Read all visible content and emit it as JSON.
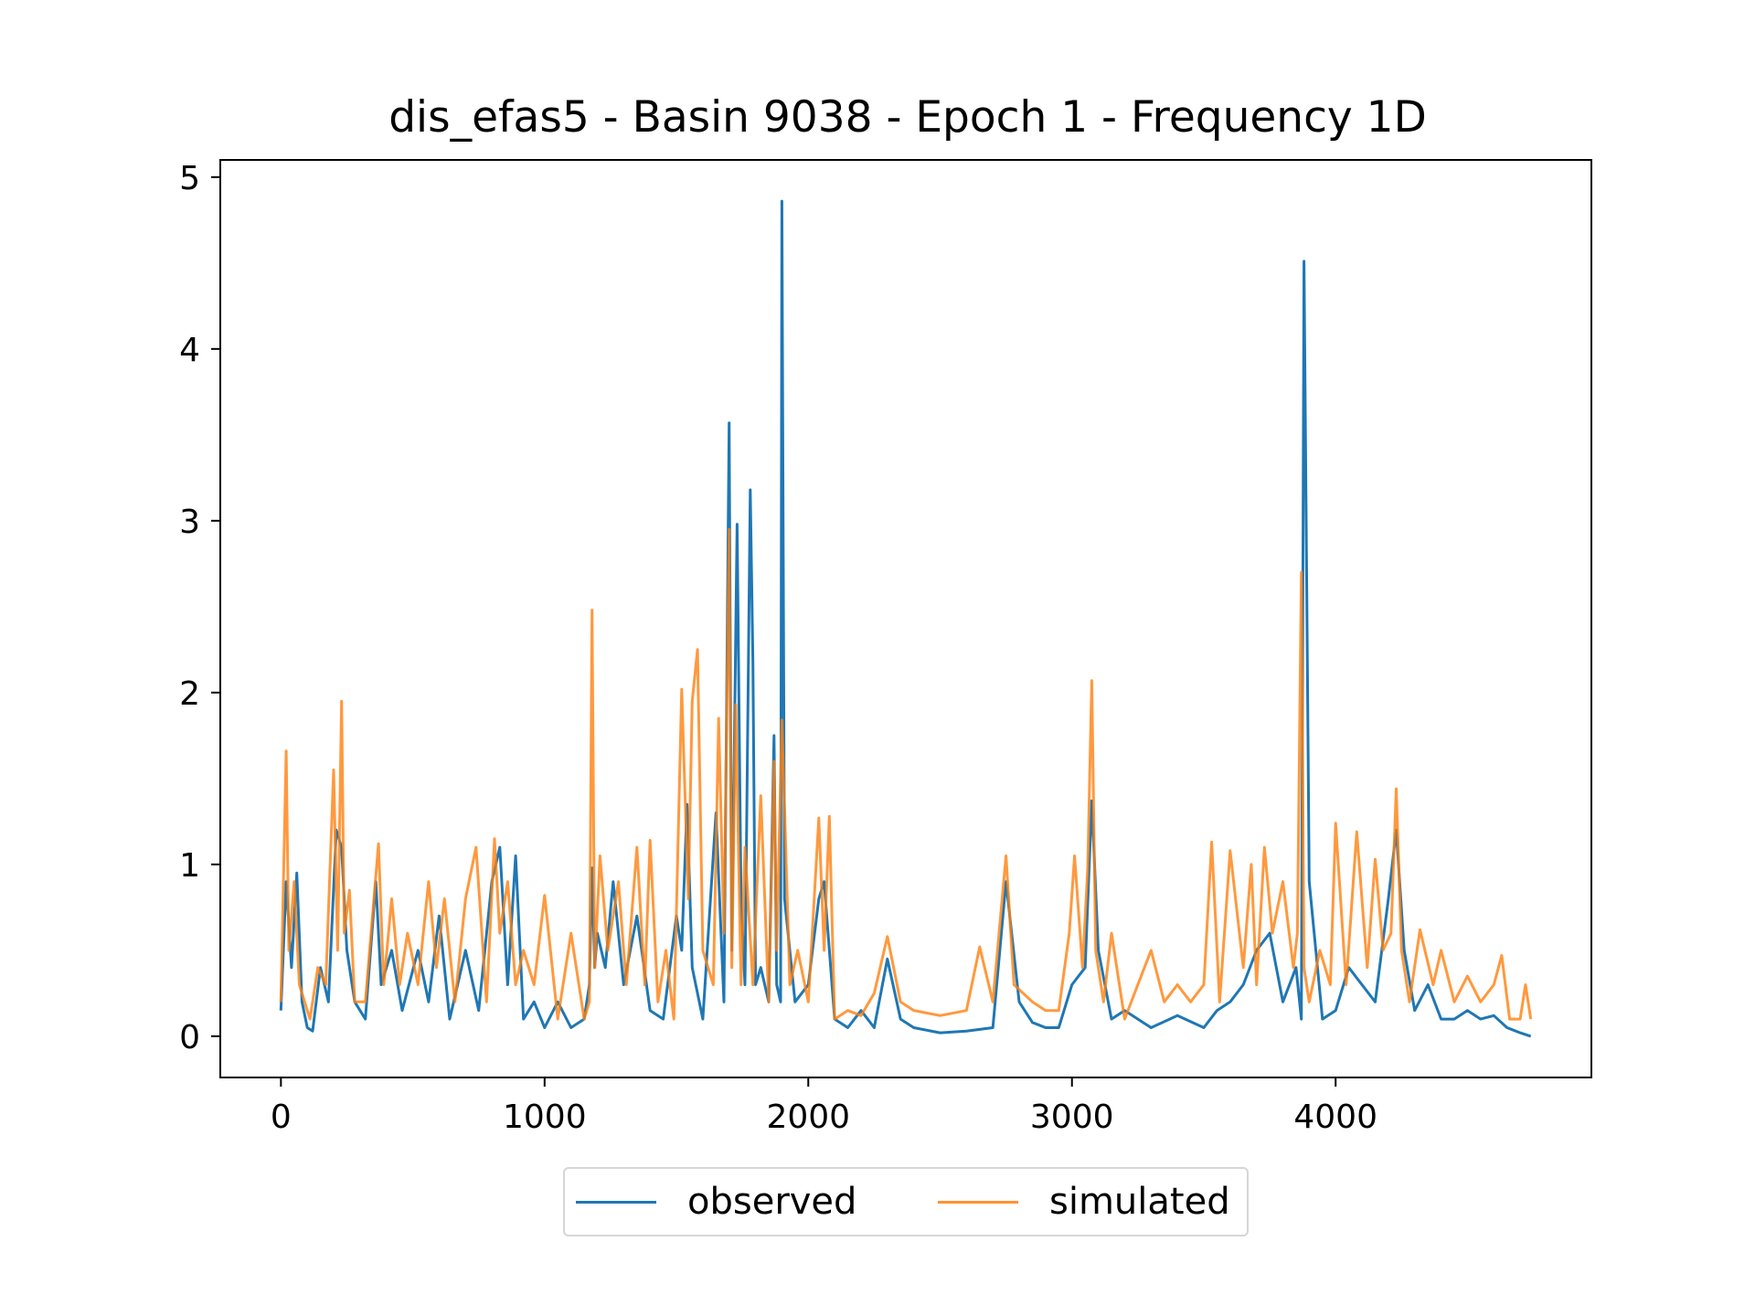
{
  "chart_data": {
    "type": "line",
    "title": "dis_efas5 - Basin 9038 - Epoch 1 - Frequency 1D",
    "xlabel": "",
    "ylabel": "",
    "xlim": [
      -230,
      4970
    ],
    "ylim": [
      -0.24,
      5.1
    ],
    "xticks": [
      0,
      1000,
      2000,
      3000,
      4000
    ],
    "yticks": [
      0,
      1,
      2,
      3,
      4,
      5
    ],
    "xtick_labels": [
      "0",
      "1000",
      "2000",
      "3000",
      "4000"
    ],
    "ytick_labels": [
      "0",
      "1",
      "2",
      "3",
      "4",
      "5"
    ],
    "grid": false,
    "legend_position": "below-center",
    "series": [
      {
        "name": "observed",
        "color": "#1f77b4",
        "x": [
          0,
          20,
          40,
          60,
          80,
          100,
          120,
          150,
          180,
          210,
          230,
          250,
          280,
          320,
          360,
          380,
          420,
          460,
          520,
          560,
          600,
          640,
          700,
          750,
          800,
          830,
          860,
          890,
          920,
          960,
          1000,
          1050,
          1100,
          1150,
          1170,
          1180,
          1190,
          1200,
          1230,
          1260,
          1300,
          1350,
          1400,
          1450,
          1500,
          1520,
          1540,
          1560,
          1600,
          1650,
          1680,
          1700,
          1710,
          1730,
          1745,
          1760,
          1780,
          1790,
          1800,
          1820,
          1850,
          1870,
          1880,
          1895,
          1900,
          1910,
          1950,
          2000,
          2040,
          2060,
          2100,
          2150,
          2200,
          2250,
          2300,
          2350,
          2400,
          2500,
          2600,
          2700,
          2750,
          2800,
          2850,
          2900,
          2950,
          3000,
          3050,
          3075,
          3100,
          3150,
          3200,
          3300,
          3400,
          3500,
          3550,
          3600,
          3650,
          3700,
          3750,
          3800,
          3850,
          3870,
          3880,
          3900,
          3950,
          4000,
          4050,
          4100,
          4150,
          4200,
          4230,
          4260,
          4300,
          4350,
          4400,
          4450,
          4500,
          4550,
          4600,
          4650,
          4700,
          4740
        ],
        "y": [
          0.15,
          0.9,
          0.4,
          0.95,
          0.2,
          0.05,
          0.03,
          0.4,
          0.2,
          1.2,
          1.1,
          0.5,
          0.2,
          0.1,
          0.9,
          0.3,
          0.5,
          0.15,
          0.5,
          0.2,
          0.7,
          0.1,
          0.5,
          0.15,
          0.9,
          1.1,
          0.3,
          1.05,
          0.1,
          0.2,
          0.05,
          0.2,
          0.05,
          0.1,
          0.3,
          0.98,
          0.4,
          0.6,
          0.4,
          0.9,
          0.3,
          0.7,
          0.15,
          0.1,
          0.7,
          0.5,
          1.35,
          0.4,
          0.1,
          1.3,
          0.2,
          3.57,
          0.5,
          2.98,
          0.8,
          0.3,
          3.18,
          2.18,
          0.3,
          0.4,
          0.2,
          1.75,
          0.3,
          0.2,
          4.86,
          0.8,
          0.2,
          0.3,
          0.8,
          0.9,
          0.1,
          0.05,
          0.15,
          0.05,
          0.45,
          0.1,
          0.05,
          0.02,
          0.03,
          0.05,
          0.9,
          0.2,
          0.08,
          0.05,
          0.05,
          0.3,
          0.4,
          1.37,
          0.5,
          0.1,
          0.15,
          0.05,
          0.12,
          0.05,
          0.15,
          0.2,
          0.3,
          0.5,
          0.6,
          0.2,
          0.4,
          0.1,
          4.51,
          0.9,
          0.1,
          0.15,
          0.4,
          0.3,
          0.2,
          0.8,
          1.2,
          0.5,
          0.15,
          0.3,
          0.1,
          0.1,
          0.15,
          0.1,
          0.12,
          0.05,
          0.02,
          0.0
        ]
      },
      {
        "name": "simulated",
        "color": "#ff7f0e",
        "x": [
          0,
          20,
          30,
          50,
          70,
          90,
          110,
          140,
          170,
          200,
          215,
          230,
          240,
          260,
          280,
          320,
          370,
          390,
          420,
          450,
          480,
          520,
          560,
          590,
          620,
          660,
          700,
          740,
          780,
          810,
          830,
          860,
          890,
          920,
          960,
          1000,
          1050,
          1100,
          1150,
          1170,
          1180,
          1190,
          1210,
          1240,
          1280,
          1310,
          1350,
          1380,
          1400,
          1430,
          1460,
          1490,
          1520,
          1545,
          1560,
          1580,
          1600,
          1640,
          1660,
          1680,
          1700,
          1710,
          1725,
          1745,
          1760,
          1790,
          1820,
          1850,
          1870,
          1880,
          1900,
          1930,
          1960,
          2000,
          2040,
          2060,
          2080,
          2100,
          2150,
          2200,
          2250,
          2300,
          2350,
          2400,
          2500,
          2600,
          2650,
          2700,
          2750,
          2780,
          2850,
          2900,
          2950,
          2990,
          3010,
          3040,
          3060,
          3075,
          3090,
          3120,
          3150,
          3200,
          3250,
          3300,
          3350,
          3400,
          3450,
          3500,
          3530,
          3560,
          3600,
          3650,
          3680,
          3700,
          3730,
          3760,
          3800,
          3840,
          3855,
          3870,
          3880,
          3900,
          3940,
          3980,
          4000,
          4040,
          4080,
          4120,
          4150,
          4180,
          4210,
          4230,
          4250,
          4280,
          4320,
          4370,
          4400,
          4450,
          4500,
          4550,
          4600,
          4630,
          4660,
          4700,
          4720,
          4740
        ],
        "y": [
          0.2,
          1.66,
          0.5,
          0.9,
          0.3,
          0.2,
          0.1,
          0.4,
          0.3,
          1.55,
          0.5,
          1.95,
          0.6,
          0.85,
          0.2,
          0.2,
          1.12,
          0.3,
          0.8,
          0.3,
          0.6,
          0.3,
          0.9,
          0.4,
          0.8,
          0.2,
          0.8,
          1.1,
          0.2,
          1.15,
          0.6,
          0.9,
          0.3,
          0.5,
          0.3,
          0.82,
          0.1,
          0.6,
          0.1,
          0.2,
          2.48,
          0.4,
          1.05,
          0.5,
          0.9,
          0.3,
          1.1,
          0.3,
          1.14,
          0.2,
          0.5,
          0.1,
          2.02,
          0.8,
          1.95,
          2.25,
          0.5,
          0.3,
          1.85,
          0.6,
          2.95,
          0.4,
          1.93,
          0.3,
          1.1,
          0.3,
          1.4,
          0.2,
          1.6,
          0.5,
          1.84,
          0.3,
          0.5,
          0.2,
          1.27,
          0.5,
          1.28,
          0.1,
          0.15,
          0.12,
          0.25,
          0.58,
          0.2,
          0.15,
          0.12,
          0.15,
          0.52,
          0.2,
          1.05,
          0.3,
          0.2,
          0.15,
          0.15,
          0.6,
          1.05,
          0.4,
          0.98,
          2.07,
          0.5,
          0.2,
          0.6,
          0.1,
          0.3,
          0.5,
          0.2,
          0.3,
          0.2,
          0.3,
          1.13,
          0.2,
          1.08,
          0.4,
          1.0,
          0.3,
          1.1,
          0.6,
          0.9,
          0.4,
          0.6,
          2.7,
          0.4,
          0.2,
          0.5,
          0.3,
          1.24,
          0.3,
          1.19,
          0.4,
          1.03,
          0.5,
          0.6,
          1.44,
          0.5,
          0.2,
          0.62,
          0.3,
          0.5,
          0.2,
          0.35,
          0.2,
          0.3,
          0.47,
          0.1,
          0.1,
          0.3,
          0.1
        ]
      }
    ]
  }
}
